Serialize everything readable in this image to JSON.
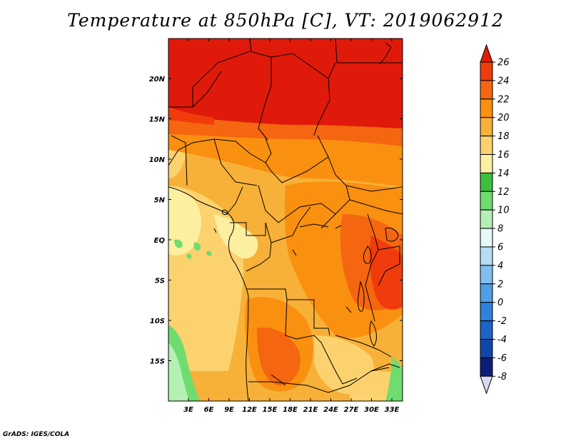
{
  "title": "Temperature at 850hPa [C], VT: 2019062912",
  "credit": "GrADS: IGES/COLA",
  "map": {
    "lat_labels": [
      "20N",
      "15N",
      "10N",
      "5N",
      "EQ",
      "5S",
      "10S",
      "15S"
    ],
    "lon_labels": [
      "3E",
      "6E",
      "9E",
      "12E",
      "15E",
      "18E",
      "21E",
      "24E",
      "27E",
      "30E",
      "33E"
    ]
  },
  "colorbar": {
    "levels": [
      "26",
      "24",
      "22",
      "20",
      "18",
      "16",
      "14",
      "12",
      "10",
      "8",
      "6",
      "4",
      "2",
      "0",
      "-2",
      "-4",
      "-6",
      "-8"
    ],
    "colors": [
      "#e01a0a",
      "#f03c0c",
      "#f56610",
      "#fa9010",
      "#f7b138",
      "#fbd26e",
      "#fdefa0",
      "#3cbf3c",
      "#6fdc6f",
      "#b4f0b4",
      "#e6f8f8",
      "#b6dcf4",
      "#82bff0",
      "#509ee6",
      "#2e80dd",
      "#1e64c8",
      "#0f46a8",
      "#0a1e78",
      "#d8d8f0"
    ]
  }
}
